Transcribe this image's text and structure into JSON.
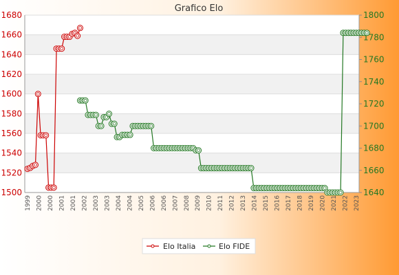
{
  "window": {
    "title": "Grafico Elo"
  },
  "chart_data": {
    "type": "line",
    "title": "Grafico Elo",
    "xlabel": "",
    "ylabel": "",
    "grid": true,
    "legend_position": "bottom-center",
    "y_left": {
      "min": 1500,
      "max": 1680,
      "ticks": [
        1500,
        1520,
        1540,
        1560,
        1580,
        1600,
        1620,
        1640,
        1660,
        1680
      ],
      "color": "#cc0000"
    },
    "y_right": {
      "min": 1640,
      "max": 1800,
      "ticks": [
        1640,
        1660,
        1680,
        1700,
        1720,
        1740,
        1760,
        1780,
        1800
      ],
      "color": "#227722"
    },
    "n_points": 126,
    "x_tick_labels": [
      "1999",
      "2000",
      "2000",
      "2001",
      "2001",
      "2002",
      "2003",
      "2003",
      "2004",
      "2004",
      "2005",
      "2006",
      "2006",
      "2007",
      "2008",
      "2009",
      "2010",
      "2011",
      "2012",
      "2013",
      "2014",
      "2015",
      "2016",
      "2017",
      "2018",
      "2019",
      "2020",
      "2021",
      "2022",
      "2023"
    ],
    "series": [
      {
        "name": "Elo Italia",
        "axis": "left",
        "color": "#cc0000",
        "start_index": 0,
        "values": [
          1524,
          1525,
          1527,
          1528,
          1600,
          1558,
          1558,
          1558,
          1505,
          1505,
          1505,
          1646,
          1646,
          1646,
          1658,
          1658,
          1658,
          1661,
          1662,
          1659,
          1667
        ]
      },
      {
        "name": "Elo FIDE",
        "axis": "right",
        "color": "#227722",
        "start_index": 20,
        "values": [
          1723,
          1723,
          1723,
          1710,
          1710,
          1710,
          1710,
          1700,
          1700,
          1708,
          1708,
          1711,
          1702,
          1702,
          1690,
          1690,
          1692,
          1692,
          1692,
          1692,
          1700,
          1700,
          1700,
          1700,
          1700,
          1700,
          1700,
          1700,
          1680,
          1680,
          1680,
          1680,
          1680,
          1680,
          1680,
          1680,
          1680,
          1680,
          1680,
          1680,
          1680,
          1680,
          1680,
          1680,
          1678,
          1678,
          1662,
          1662,
          1662,
          1662,
          1662,
          1662,
          1662,
          1662,
          1662,
          1662,
          1662,
          1662,
          1662,
          1662,
          1662,
          1662,
          1662,
          1662,
          1662,
          1662,
          1644,
          1644,
          1644,
          1644,
          1644,
          1644,
          1644,
          1644,
          1644,
          1644,
          1644,
          1644,
          1644,
          1644,
          1644,
          1644,
          1644,
          1644,
          1644,
          1644,
          1644,
          1644,
          1644,
          1644,
          1644,
          1644,
          1644,
          1644,
          1640,
          1640,
          1640,
          1640,
          1640,
          1640,
          1784,
          1784,
          1784,
          1784,
          1784,
          1784,
          1784,
          1784,
          1784,
          1784
        ]
      }
    ]
  }
}
